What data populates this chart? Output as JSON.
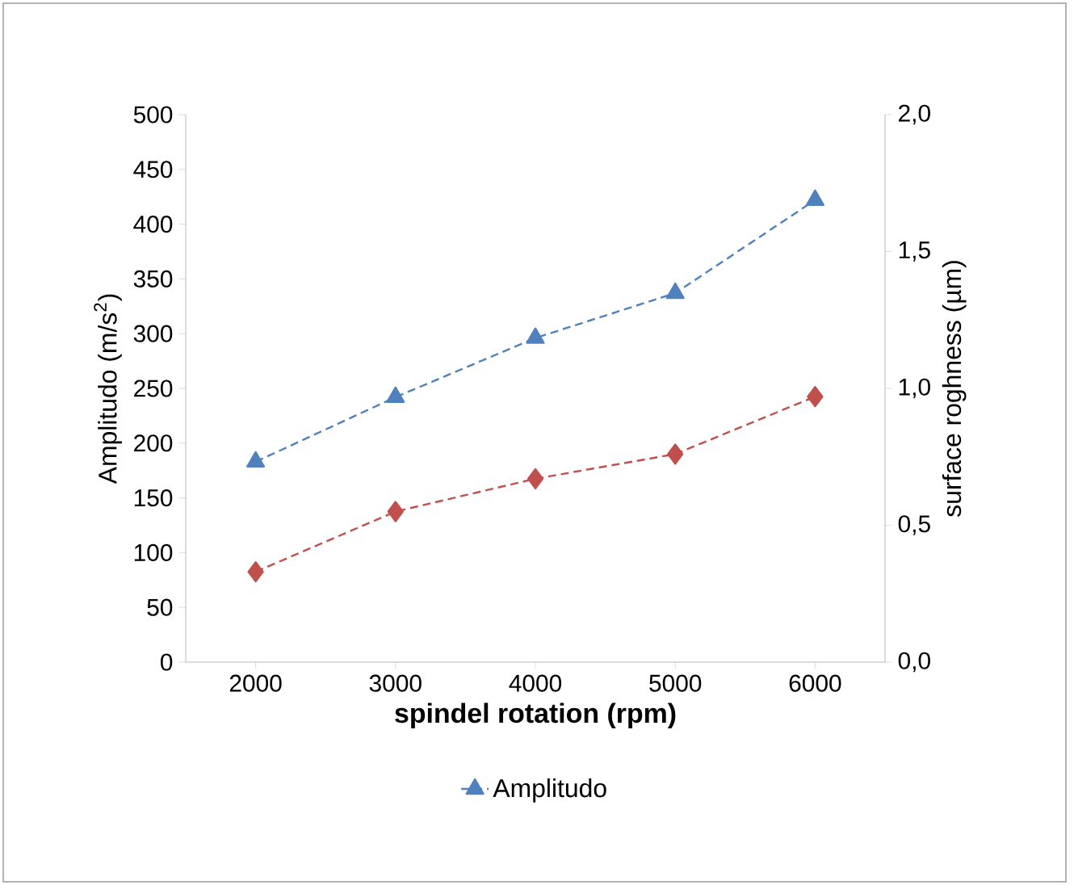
{
  "chart_data": {
    "type": "line",
    "categories": [
      "2000",
      "3000",
      "4000",
      "5000",
      "6000"
    ],
    "xlabel": "spindel rotation (rpm)",
    "ylabel": "Amplitudo (m/s$^{2}$)",
    "y2label": "surface roghness  (µm)",
    "ylim": [
      0,
      500
    ],
    "yticks": [
      0,
      50,
      100,
      150,
      200,
      250,
      300,
      350,
      400,
      450,
      500
    ],
    "y2lim": [
      0,
      2
    ],
    "y2ticks": [
      {
        "value": 0,
        "label": "0,0"
      },
      {
        "value": 0.5,
        "label": "0,5"
      },
      {
        "value": 1,
        "label": "1,0"
      },
      {
        "value": 1.5,
        "label": "1,5"
      },
      {
        "value": 2,
        "label": "2,0"
      }
    ],
    "line_style": "dashed",
    "legend": "bottom",
    "grid": false,
    "series": [
      {
        "name": "Amplitudo",
        "color": "#4f81bd",
        "marker": "triangle",
        "values": [
          183,
          242,
          296,
          337,
          422
        ]
      },
      {
        "color": "#c0504d",
        "marker": "diamond",
        "axis": "y2",
        "values": [
          0.33,
          0.55,
          0.67,
          0.76,
          0.97
        ]
      }
    ]
  }
}
